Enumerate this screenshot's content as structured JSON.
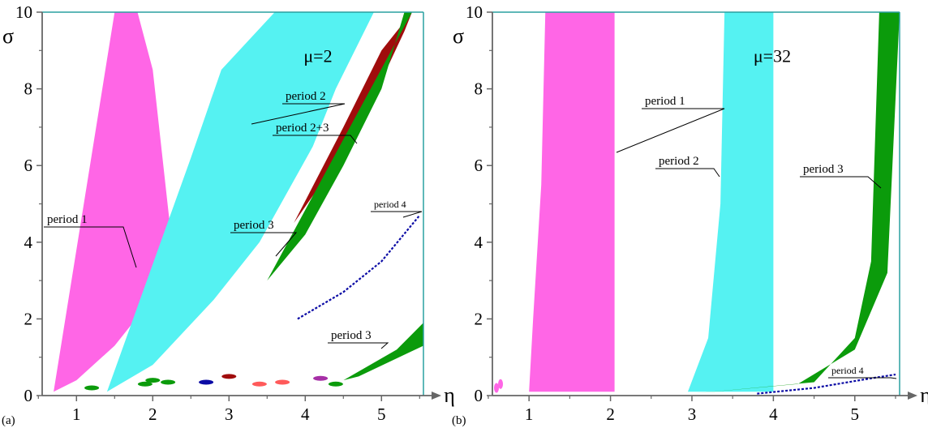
{
  "chart_data": [
    {
      "type": "area",
      "panel_label": "(a)",
      "parameter": "μ=2",
      "xlabel": "η",
      "ylabel": "σ",
      "xlim": [
        0.55,
        5.55
      ],
      "ylim": [
        0,
        10
      ],
      "x_ticks": [
        "1",
        "2",
        "3",
        "4",
        "5"
      ],
      "y_ticks": [
        "0",
        "2",
        "4",
        "6",
        "8",
        "10"
      ],
      "colors": {
        "period1": "#ff66e6",
        "period2": "#55f2f2",
        "period3": "#0b9b0b",
        "period2+3": "#a00c0c",
        "period4": "#0b0ba5",
        "other": "#ff5a5a"
      },
      "annotations": [
        "period 1",
        "period 2",
        "period 2+3",
        "period 3",
        "period 4",
        "period 3"
      ],
      "series": [
        {
          "name": "period 1",
          "color": "#ff66e6",
          "lower": [
            [
              0.7,
              0.1
            ],
            [
              1.0,
              0.4
            ],
            [
              1.5,
              1.3
            ],
            [
              1.9,
              2.3
            ],
            [
              2.3,
              4.3
            ],
            [
              2.6,
              6.5
            ],
            [
              2.8,
              8.0
            ]
          ],
          "upper": [
            [
              1.5,
              10
            ],
            [
              1.8,
              10
            ],
            [
              2.0,
              8.5
            ],
            [
              2.25,
              4.0
            ],
            [
              2.2,
              2.8
            ],
            [
              2.0,
              1.8
            ]
          ]
        },
        {
          "name": "period 2",
          "color": "#55f2f2",
          "lower": [
            [
              1.4,
              0.1
            ],
            [
              2.0,
              0.8
            ],
            [
              2.8,
              2.5
            ],
            [
              3.4,
              4.0
            ],
            [
              4.1,
              6.5
            ],
            [
              4.4,
              8.0
            ],
            [
              4.9,
              10
            ]
          ],
          "upper": [
            [
              2.5,
              6.2
            ],
            [
              2.9,
              8.5
            ],
            [
              3.6,
              10
            ],
            [
              5.2,
              10
            ]
          ]
        },
        {
          "name": "period 2+3",
          "color": "#a00c0c",
          "lower": [
            [
              3.85,
              4.5
            ],
            [
              4.5,
              7.0
            ],
            [
              5.0,
              9.0
            ],
            [
              5.4,
              10
            ]
          ],
          "upper": [
            [
              4.2,
              5.5
            ],
            [
              4.9,
              7.8
            ],
            [
              5.3,
              9.5
            ]
          ]
        },
        {
          "name": "period 3",
          "color": "#0b9b0b",
          "lower": [
            [
              3.5,
              3.0
            ],
            [
              4.0,
              4.2
            ],
            [
              4.5,
              6.0
            ],
            [
              5.0,
              8.0
            ],
            [
              5.3,
              10
            ]
          ],
          "upper": [
            [
              5.4,
              10
            ],
            [
              5.55,
              10
            ]
          ]
        },
        {
          "name": "period 4",
          "color": "#0b0ba5",
          "points": [
            [
              3.9,
              2.0
            ],
            [
              4.5,
              2.7
            ],
            [
              5.0,
              3.5
            ],
            [
              5.5,
              4.7
            ]
          ]
        },
        {
          "name": "period 3",
          "color": "#0b9b0b",
          "lower": [
            [
              3.9,
              0.1
            ],
            [
              4.7,
              0.5
            ],
            [
              5.55,
              1.3
            ]
          ],
          "upper": [
            [
              4.5,
              0.4
            ],
            [
              5.2,
              1.2
            ],
            [
              5.55,
              1.9
            ]
          ]
        }
      ]
    },
    {
      "type": "area",
      "panel_label": "(b)",
      "parameter": "μ=32",
      "xlabel": "η",
      "ylabel": "σ",
      "xlim": [
        0.55,
        5.55
      ],
      "ylim": [
        0,
        10
      ],
      "x_ticks": [
        "1",
        "2",
        "3",
        "4",
        "5"
      ],
      "y_ticks": [
        "0",
        "2",
        "4",
        "6",
        "8",
        "10"
      ],
      "colors": {
        "period1": "#ff66e6",
        "period2": "#55f2f2",
        "period3": "#0b9b0b",
        "period4": "#0b0ba5"
      },
      "annotations": [
        "period 1",
        "period 2",
        "period 3",
        "period 4"
      ],
      "series": [
        {
          "name": "period 1",
          "color": "#ff66e6",
          "left": [
            [
              1.0,
              0.1
            ],
            [
              1.05,
              2.0
            ],
            [
              1.15,
              5.5
            ],
            [
              1.2,
              10
            ]
          ],
          "right": [
            [
              2.05,
              0.1
            ],
            [
              2.05,
              6.0
            ],
            [
              2.05,
              10
            ]
          ]
        },
        {
          "name": "period 2",
          "color": "#55f2f2",
          "left": [
            [
              2.95,
              0.1
            ],
            [
              3.2,
              1.5
            ],
            [
              3.35,
              5.0
            ],
            [
              3.4,
              10
            ]
          ],
          "right": [
            [
              4.0,
              0.1
            ],
            [
              4.0,
              5.0
            ],
            [
              4.0,
              10
            ]
          ]
        },
        {
          "name": "period 3",
          "color": "#0b9b0b",
          "lower": [
            [
              3.0,
              0.05
            ],
            [
              4.3,
              0.3
            ],
            [
              5.0,
              1.2
            ],
            [
              5.4,
              3.2
            ]
          ],
          "upper": [
            [
              4.5,
              0.35
            ],
            [
              5.0,
              1.5
            ],
            [
              5.2,
              3.5
            ],
            [
              5.3,
              10
            ],
            [
              5.55,
              10
            ]
          ]
        },
        {
          "name": "period 4",
          "color": "#0b0ba5",
          "points": [
            [
              3.8,
              0.05
            ],
            [
              4.5,
              0.2
            ],
            [
              5.2,
              0.45
            ],
            [
              5.5,
              0.55
            ]
          ]
        }
      ]
    }
  ]
}
